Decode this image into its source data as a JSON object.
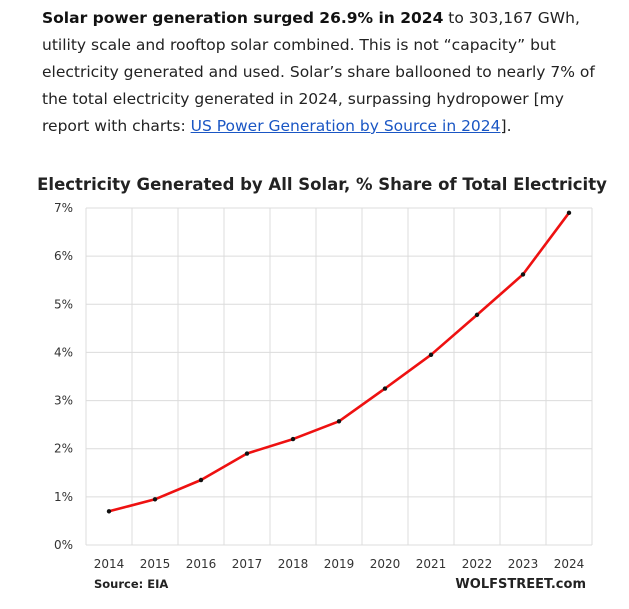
{
  "article": {
    "bold_lead": "Solar power generation surged 26.9% in 2024",
    "text_1": " to 303,167 GWh, utility scale and rooftop solar combined. This is not “capacity” but electricity generated and used. Solar’s share ballooned to nearly 7% of the total electricity generated in 2024, surpassing hydropower [my report with charts: ",
    "link_text": "US Power Generation by Source in 2024",
    "text_2": "].",
    "link_color": "#1a56c4"
  },
  "chart_data": {
    "type": "line",
    "title": "Electricity Generated by All Solar, % Share of Total Electricity",
    "xlabel": "",
    "ylabel": "",
    "x": [
      2014,
      2015,
      2016,
      2017,
      2018,
      2019,
      2020,
      2021,
      2022,
      2023,
      2024
    ],
    "series": [
      {
        "values": [
          0.7,
          0.95,
          1.35,
          1.9,
          2.2,
          2.57,
          3.25,
          3.95,
          4.78,
          5.62,
          6.9
        ],
        "color": "#ee1111",
        "marker_color": "#111111"
      }
    ],
    "ylim": [
      0,
      7
    ],
    "yticks": [
      0,
      1,
      2,
      3,
      4,
      5,
      6,
      7
    ],
    "ytick_labels": [
      "0%",
      "1%",
      "2%",
      "3%",
      "4%",
      "5%",
      "6%",
      "7%"
    ],
    "xtick_labels": [
      "2014",
      "2015",
      "2016",
      "2017",
      "2018",
      "2019",
      "2020",
      "2021",
      "2022",
      "2023",
      "2024"
    ],
    "grid": "both",
    "source": "Source: EIA",
    "brand": "WOLFSTREET.com"
  }
}
